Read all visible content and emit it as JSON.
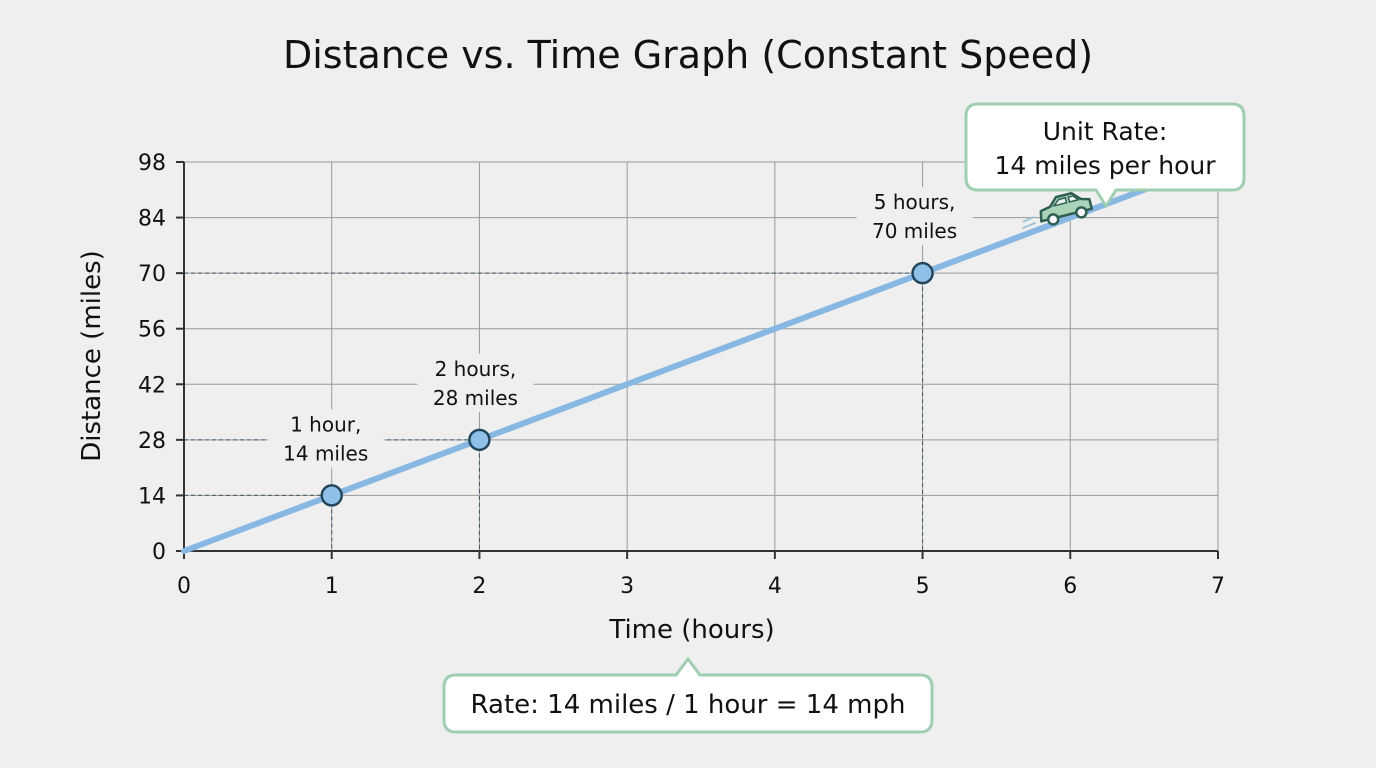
{
  "chart_data": {
    "type": "line",
    "title": "Distance vs. Time Graph (Constant Speed)",
    "xlabel": "Time (hours)",
    "ylabel": "Distance (miles)",
    "xlim": [
      0,
      7
    ],
    "ylim": [
      0,
      98
    ],
    "xticks": [
      0,
      1,
      2,
      3,
      4,
      5,
      6,
      7
    ],
    "yticks": [
      0,
      14,
      28,
      42,
      56,
      70,
      84,
      98
    ],
    "grid": true,
    "series": [
      {
        "x": [
          0,
          6.75
        ],
        "y": [
          0,
          94.5
        ],
        "color": "#86b8e3"
      }
    ],
    "points": [
      {
        "x": 1,
        "y": 14,
        "label": [
          "1 hour,",
          "14 miles"
        ]
      },
      {
        "x": 2,
        "y": 28,
        "label": [
          "2 hours,",
          "28 miles"
        ]
      },
      {
        "x": 5,
        "y": 70,
        "label": [
          "5 hours,",
          "70 miles"
        ]
      }
    ],
    "callouts": {
      "unit_rate": [
        "Unit Rate:",
        "14 miles per hour"
      ],
      "rate": "Rate: 14 miles / 1 hour = 14 mph"
    },
    "icons": [
      "car-icon"
    ],
    "colors": {
      "line": "#86b8e3",
      "point": "#8fc1e8",
      "callout_border": "#9fcfb0",
      "car": "#a9d4b8"
    }
  }
}
